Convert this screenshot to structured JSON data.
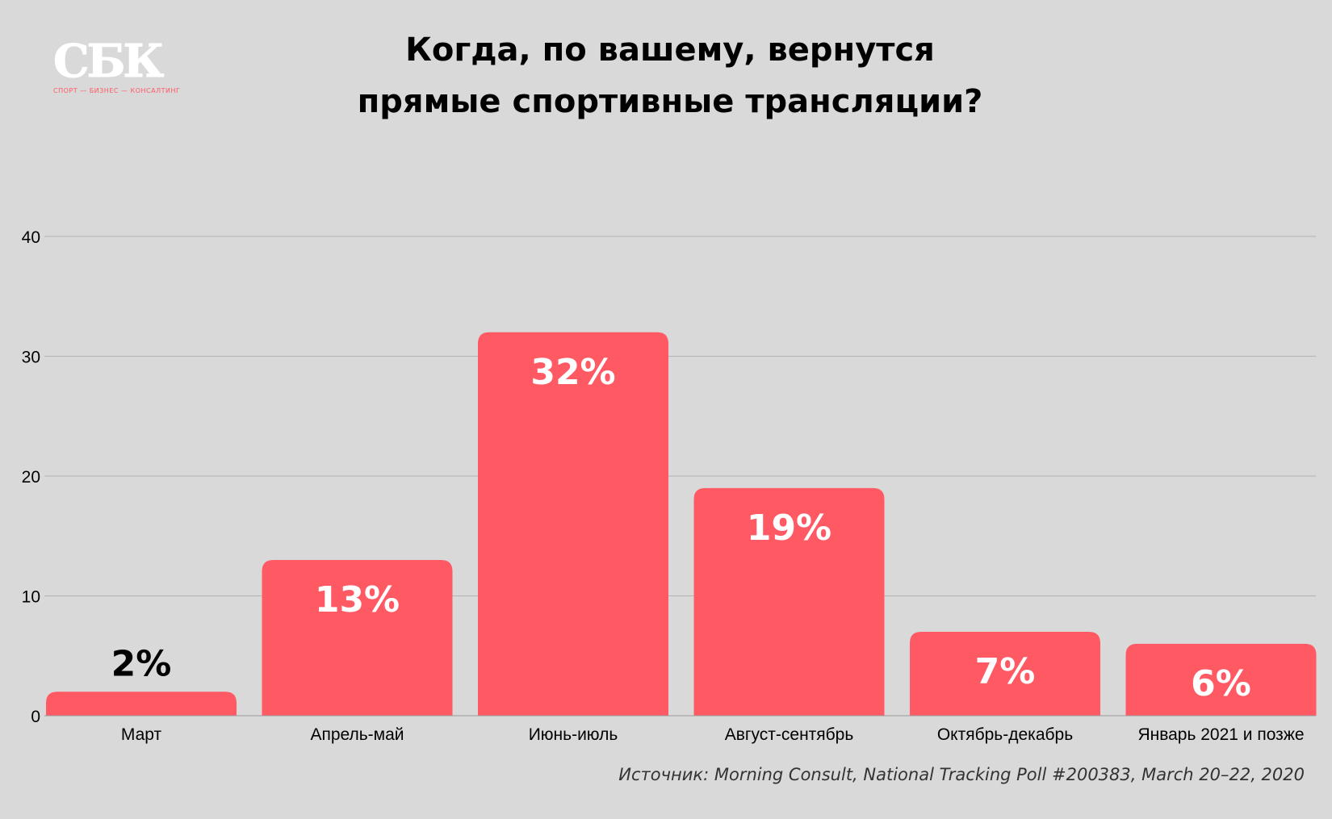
{
  "logo": {
    "mark": "СБК",
    "subtitle": "СПОРТ — БИЗНЕС — КОНСАЛТИНГ"
  },
  "chart_data": {
    "type": "bar",
    "title": "Когда, по вашему, вернутся прямые спортивные трансляции?",
    "title_lines": [
      "Когда, по вашему, вернутся",
      "прямые спортивные трансляции?"
    ],
    "categories": [
      "Март",
      "Апрель-май",
      "Июнь-июль",
      "Август-сентябрь",
      "Октябрь-декабрь",
      "Январь 2021 и позже"
    ],
    "values": [
      2,
      13,
      32,
      19,
      7,
      6
    ],
    "data_labels": [
      "2%",
      "13%",
      "32%",
      "19%",
      "7%",
      "6%"
    ],
    "ylim": [
      0,
      40
    ],
    "yticks": [
      0,
      10,
      20,
      30,
      40
    ],
    "grid": true,
    "xlabel": "",
    "ylabel": "",
    "bar_color": "#ff5a64",
    "source": "Источник: Morning Consult, National Tracking Poll #200383, March 20–22, 2020"
  }
}
